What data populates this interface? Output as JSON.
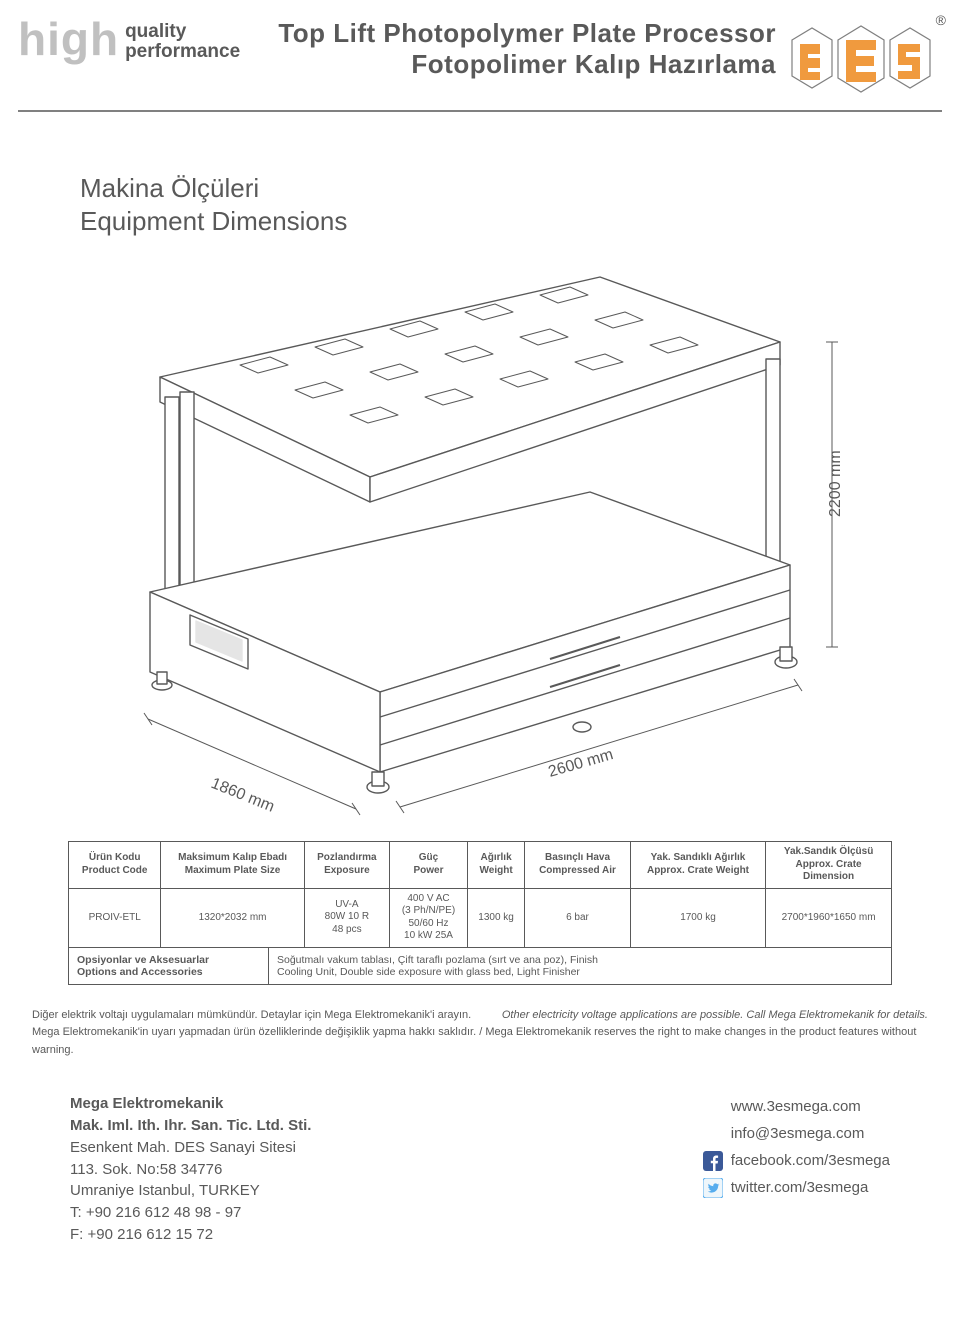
{
  "brand": {
    "big": "high",
    "line1": "quality",
    "line2": "performance"
  },
  "title": {
    "line1": "Top Lift Photopolymer Plate Processor",
    "line2": "Fotopolimer Kalıp Hazırlama"
  },
  "section": {
    "line1": "Makina Ölçüleri",
    "line2": "Equipment Dimensions"
  },
  "dims": {
    "depth": "1860 mm",
    "width": "2600 mm",
    "height": "2200 mm"
  },
  "spec_headers": [
    "Ürün Kodu\nProduct Code",
    "Maksimum Kalıp Ebadı\nMaximum Plate Size",
    "Pozlandırma\nExposure",
    "Güç\nPower",
    "Ağırlık\nWeight",
    "Basınçlı Hava\nCompressed Air",
    "Yak. Sandıklı Ağırlık\nApprox. Crate Weight",
    "Yak.Sandık Ölçüsü\nApprox. Crate\nDimension"
  ],
  "spec_row": [
    "PROIV-ETL",
    "1320*2032 mm",
    "UV-A\n80W 10 R\n48 pcs",
    "400 V AC\n(3 Ph/N/PE)\n50/60 Hz\n10 kW 25A",
    "1300 kg",
    "6 bar",
    "1700 kg",
    "2700*1960*1650 mm"
  ],
  "options": {
    "header_tr": "Opsiyonlar ve Aksesuarlar",
    "header_en": "Options and Accessories",
    "value_tr": "Soğutmalı vakum tablası, Çift taraflı pozlama (sırt ve ana poz), Finish",
    "value_en": "Cooling Unit, Double side exposure with glass bed, Light Finisher"
  },
  "notes": {
    "tr1": "Diğer elektrik voltajı uygulamaları mümkündür. Detaylar için Mega Elektromekanik'i arayın.",
    "en1": "Other electricity voltage applications are possible. Call Mega Elektromekanik for details.",
    "tr2": "Mega Elektromekanik'in uyarı yapmadan ürün özelliklerinde değişiklik yapma hakkı saklıdır.  /  Mega Elektromekanik reserves the right to make changes in the product features without warning."
  },
  "company": {
    "name": "Mega Elektromekanik",
    "legal": "Mak. Iml. Ith. Ihr. San. Tic. Ltd. Sti.",
    "addr1": "Esenkent Mah. DES Sanayi Sitesi",
    "addr2": "113. Sok. No:58 34776",
    "addr3": "Umraniye Istanbul, TURKEY",
    "tel": "T: +90 216 612 48 98 - 97",
    "fax": "F: +90 216 612 15 72"
  },
  "contact": {
    "web": "www.3esmega.com",
    "email": "info@3esmega.com",
    "fb": "facebook.com/3esmega",
    "tw": "twitter.com/3esmega"
  },
  "colors": {
    "text": "#595959",
    "light": "#c0c0c0",
    "border": "#595959",
    "logo_orange": "#f09a3e",
    "logo_stroke": "#808080",
    "fb": "#3b5998",
    "tw": "#55acee"
  }
}
